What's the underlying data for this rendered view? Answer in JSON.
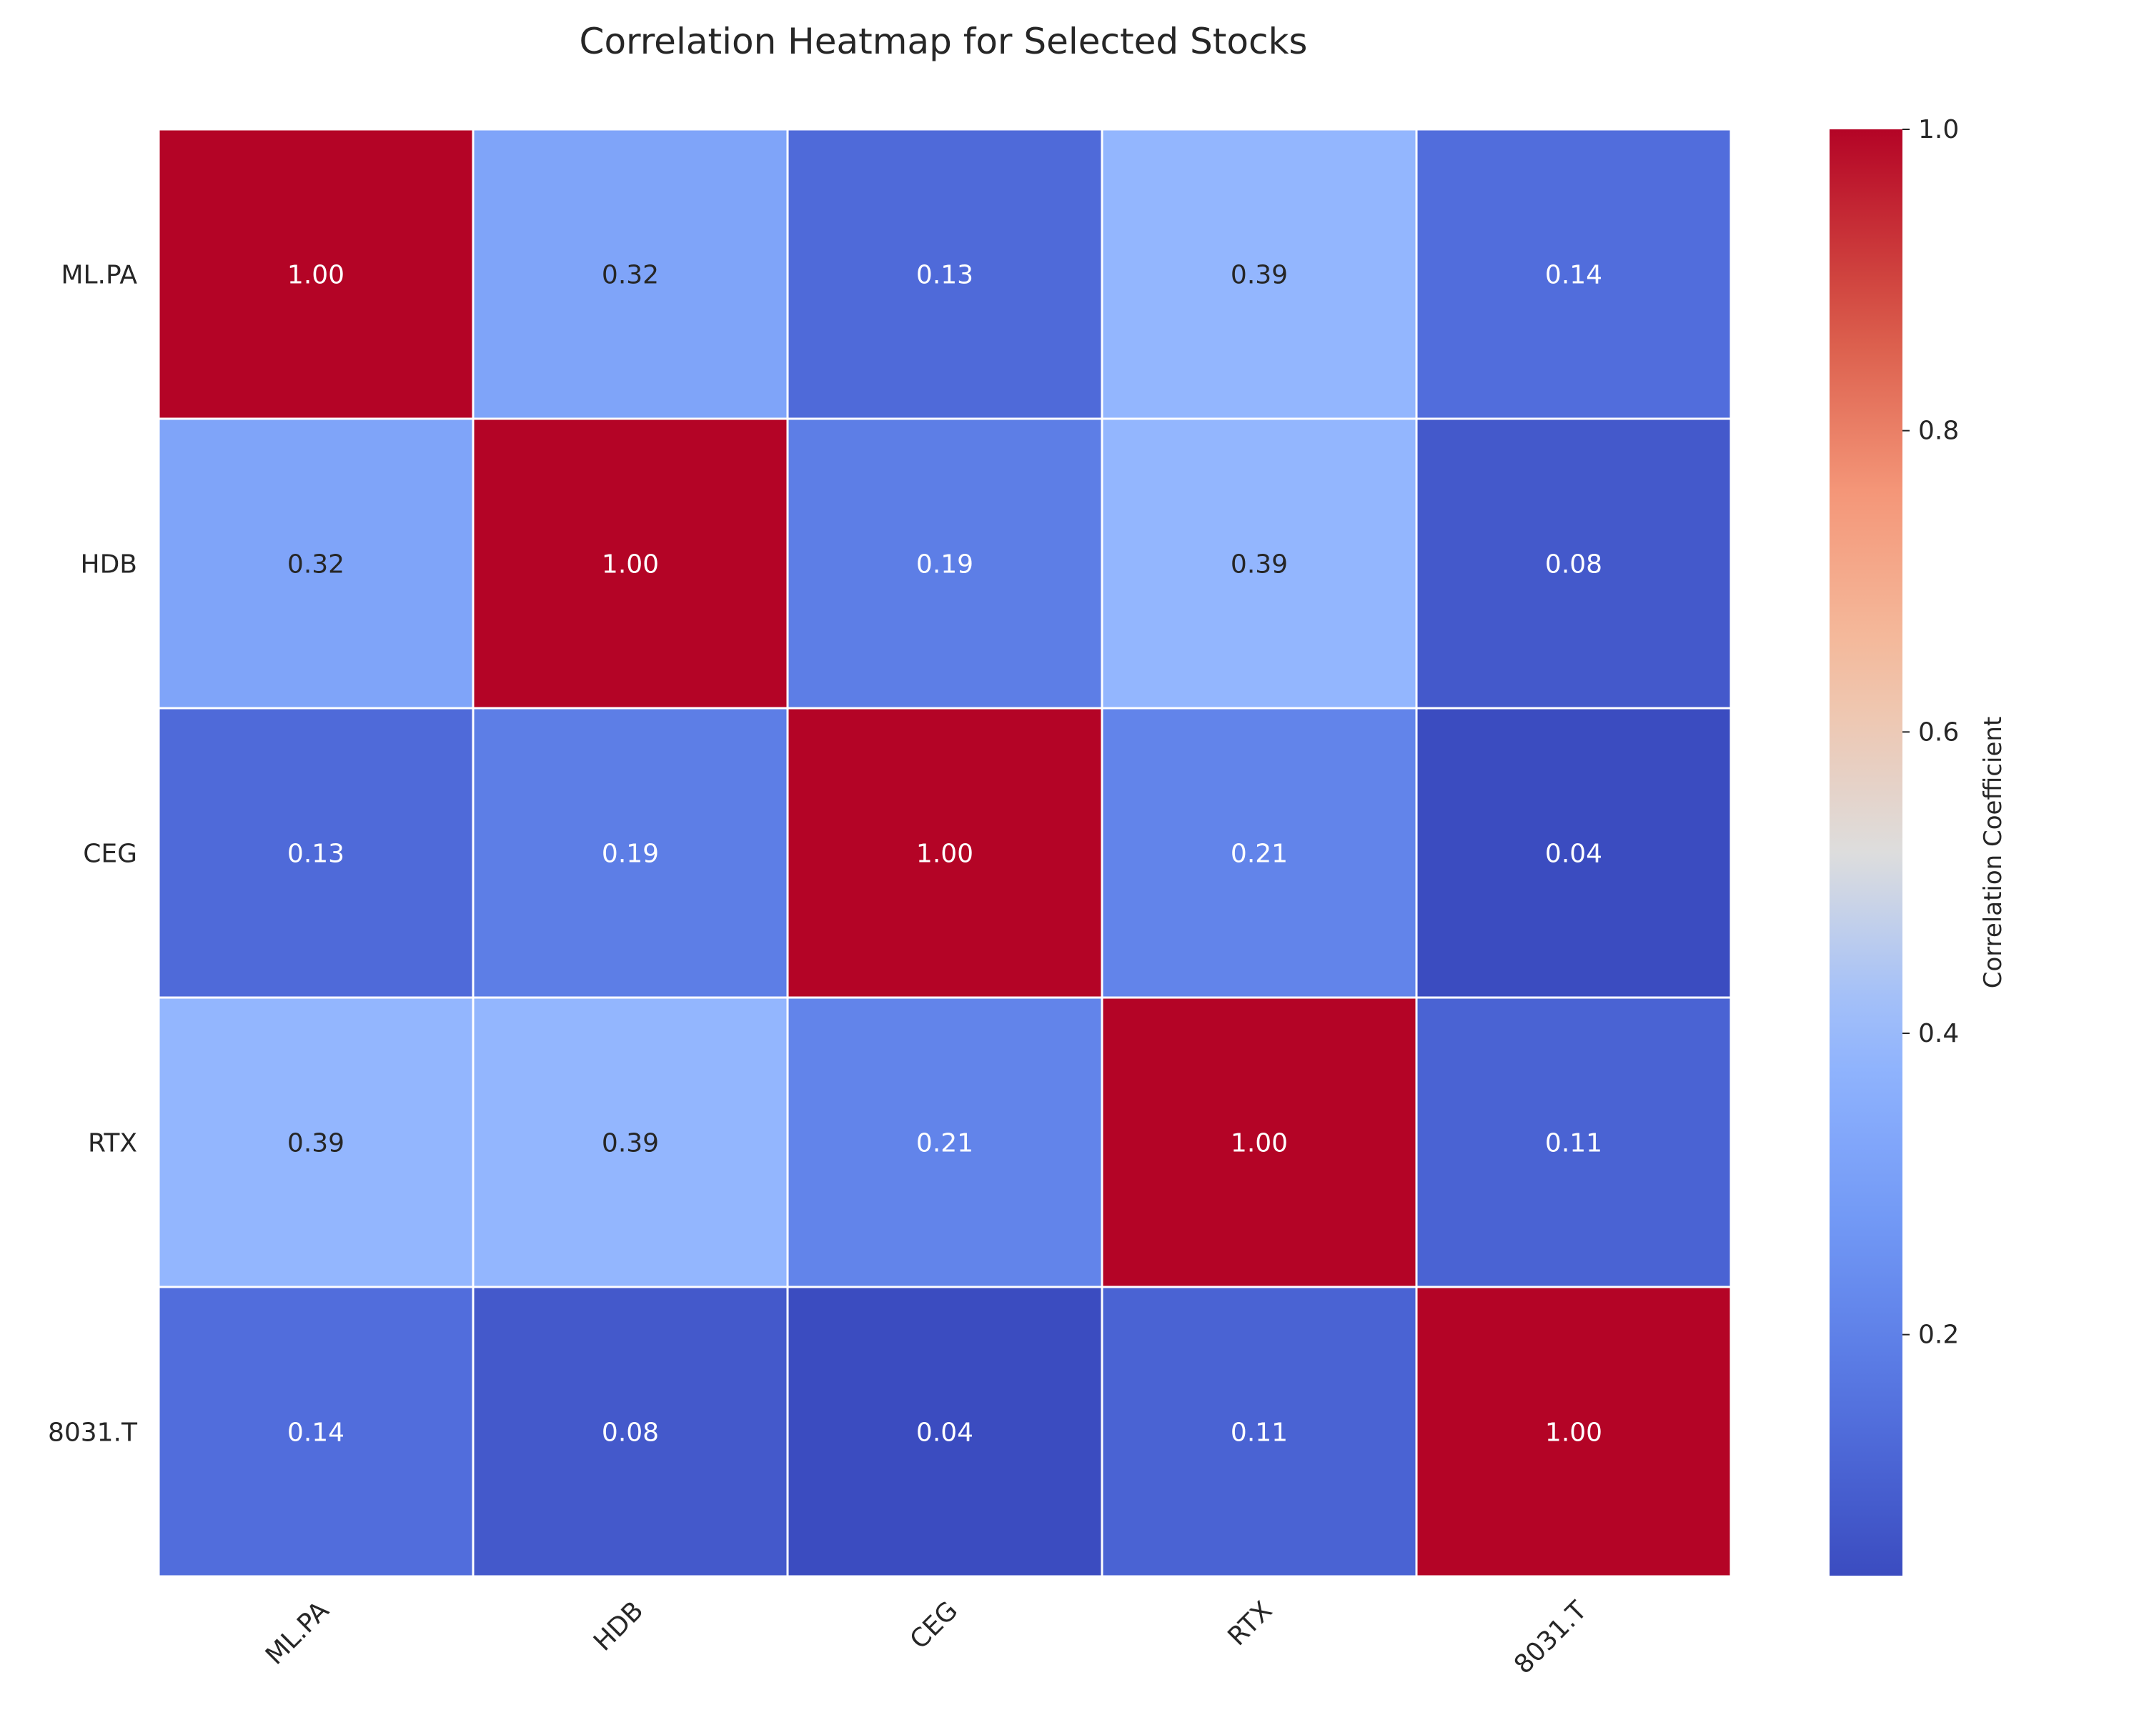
{
  "chart_data": {
    "type": "heatmap",
    "title": "Correlation Heatmap for Selected Stocks",
    "x_labels": [
      "ML.PA",
      "HDB",
      "CEG",
      "RTX",
      "8031.T"
    ],
    "y_labels": [
      "ML.PA",
      "HDB",
      "CEG",
      "RTX",
      "8031.T"
    ],
    "values": [
      [
        1.0,
        0.32,
        0.13,
        0.39,
        0.14
      ],
      [
        0.32,
        1.0,
        0.19,
        0.39,
        0.08
      ],
      [
        0.13,
        0.19,
        1.0,
        0.21,
        0.04
      ],
      [
        0.39,
        0.39,
        0.21,
        1.0,
        0.11
      ],
      [
        0.14,
        0.08,
        0.04,
        0.11,
        1.0
      ]
    ],
    "value_format": "0.00",
    "colormap": "coolwarm",
    "color_range": [
      0.04,
      1.0
    ],
    "colorbar": {
      "label": "Correlation Coefficient",
      "ticks": [
        0.2,
        0.4,
        0.6,
        0.8,
        1.0
      ],
      "tick_labels": [
        "0.2",
        "0.4",
        "0.6",
        "0.8",
        "1.0"
      ]
    },
    "grid": false,
    "cell_border_color": "#ffffff"
  }
}
